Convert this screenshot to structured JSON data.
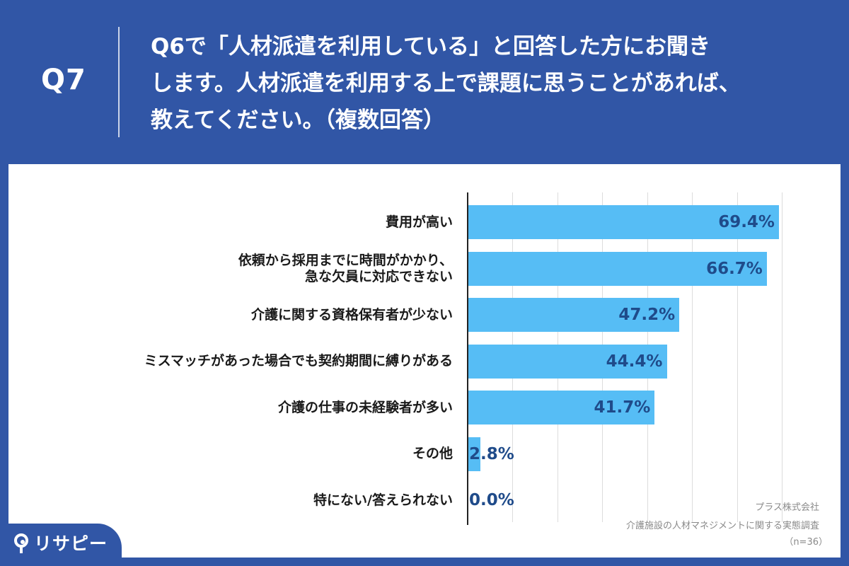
{
  "question": {
    "number": "Q7",
    "text": "Q6で「人材派遣を利用している」と回答した方にお聞き\nします。人材派遣を利用する上で課題に思うことがあれば、\n教えてください。（複数回答）"
  },
  "chart_data": {
    "type": "bar",
    "orientation": "horizontal",
    "categories": [
      "費用が高い",
      "依頼から採用までに時間がかかり、\n急な欠員に対応できない",
      "介護に関する資格保有者が少ない",
      "ミスマッチがあった場合でも契約期間に縛りがある",
      "介護の仕事の未経験者が多い",
      "その他",
      "特にない/答えられない"
    ],
    "values": [
      69.4,
      66.7,
      47.2,
      44.4,
      41.7,
      2.8,
      0.0
    ],
    "value_labels": [
      "69.4%",
      "66.7%",
      "47.2%",
      "44.4%",
      "41.7%",
      "2.8%",
      "0.0%"
    ],
    "xlim": [
      0,
      70
    ],
    "grid": true,
    "bar_color": "#56bdf5",
    "value_label_color": "#1f4b8a"
  },
  "source": {
    "company": "プラス株式会社",
    "survey": "介護施設の人材マネジメントに関する実態調査",
    "sample": "（n=36）"
  },
  "brand": {
    "logo_text": "リサピー",
    "background_color": "#3156a6"
  }
}
